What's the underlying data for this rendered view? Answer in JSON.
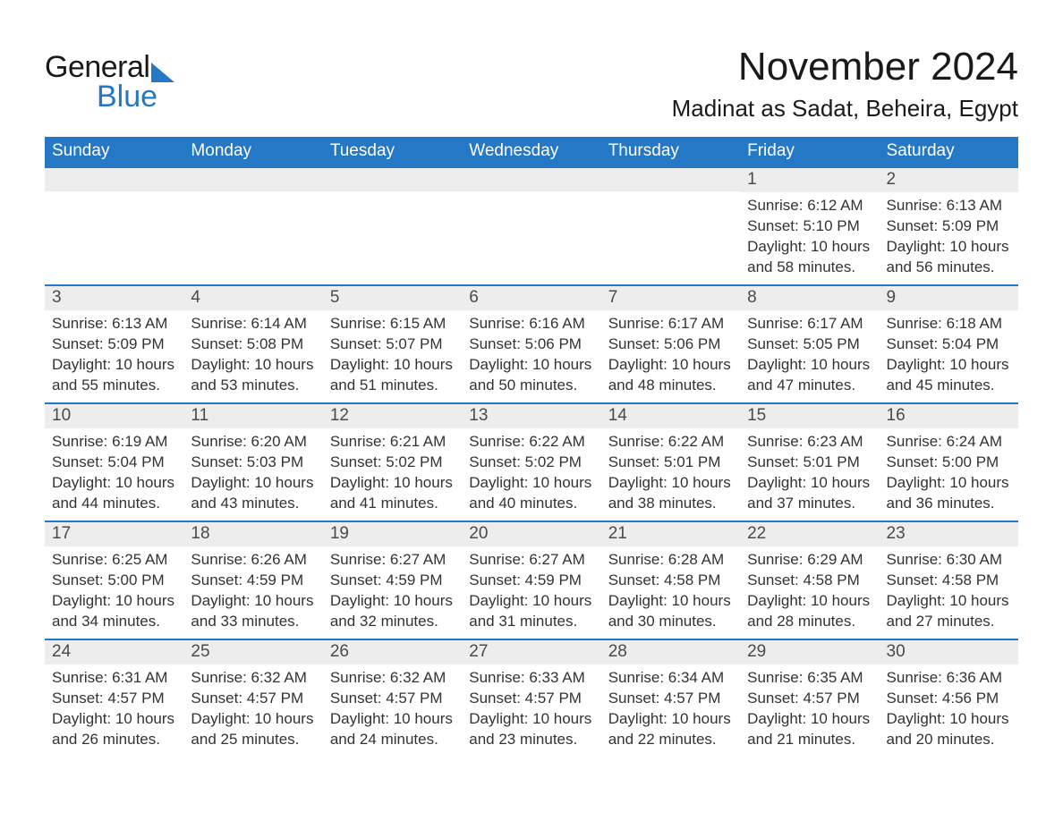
{
  "brand": {
    "name1": "General",
    "name2": "Blue",
    "accent_color": "#2478c6"
  },
  "title": "November 2024",
  "location": "Madinat as Sadat, Beheira, Egypt",
  "colors": {
    "header_bg": "#2478c6",
    "header_text": "#ffffff",
    "daynum_bg": "#ededed",
    "border_top": "#2478c6",
    "body_text": "#333333",
    "page_bg": "#ffffff"
  },
  "weekdays": [
    "Sunday",
    "Monday",
    "Tuesday",
    "Wednesday",
    "Thursday",
    "Friday",
    "Saturday"
  ],
  "weeks": [
    [
      null,
      null,
      null,
      null,
      null,
      {
        "n": "1",
        "sunrise": "Sunrise: 6:12 AM",
        "sunset": "Sunset: 5:10 PM",
        "day1": "Daylight: 10 hours",
        "day2": "and 58 minutes."
      },
      {
        "n": "2",
        "sunrise": "Sunrise: 6:13 AM",
        "sunset": "Sunset: 5:09 PM",
        "day1": "Daylight: 10 hours",
        "day2": "and 56 minutes."
      }
    ],
    [
      {
        "n": "3",
        "sunrise": "Sunrise: 6:13 AM",
        "sunset": "Sunset: 5:09 PM",
        "day1": "Daylight: 10 hours",
        "day2": "and 55 minutes."
      },
      {
        "n": "4",
        "sunrise": "Sunrise: 6:14 AM",
        "sunset": "Sunset: 5:08 PM",
        "day1": "Daylight: 10 hours",
        "day2": "and 53 minutes."
      },
      {
        "n": "5",
        "sunrise": "Sunrise: 6:15 AM",
        "sunset": "Sunset: 5:07 PM",
        "day1": "Daylight: 10 hours",
        "day2": "and 51 minutes."
      },
      {
        "n": "6",
        "sunrise": "Sunrise: 6:16 AM",
        "sunset": "Sunset: 5:06 PM",
        "day1": "Daylight: 10 hours",
        "day2": "and 50 minutes."
      },
      {
        "n": "7",
        "sunrise": "Sunrise: 6:17 AM",
        "sunset": "Sunset: 5:06 PM",
        "day1": "Daylight: 10 hours",
        "day2": "and 48 minutes."
      },
      {
        "n": "8",
        "sunrise": "Sunrise: 6:17 AM",
        "sunset": "Sunset: 5:05 PM",
        "day1": "Daylight: 10 hours",
        "day2": "and 47 minutes."
      },
      {
        "n": "9",
        "sunrise": "Sunrise: 6:18 AM",
        "sunset": "Sunset: 5:04 PM",
        "day1": "Daylight: 10 hours",
        "day2": "and 45 minutes."
      }
    ],
    [
      {
        "n": "10",
        "sunrise": "Sunrise: 6:19 AM",
        "sunset": "Sunset: 5:04 PM",
        "day1": "Daylight: 10 hours",
        "day2": "and 44 minutes."
      },
      {
        "n": "11",
        "sunrise": "Sunrise: 6:20 AM",
        "sunset": "Sunset: 5:03 PM",
        "day1": "Daylight: 10 hours",
        "day2": "and 43 minutes."
      },
      {
        "n": "12",
        "sunrise": "Sunrise: 6:21 AM",
        "sunset": "Sunset: 5:02 PM",
        "day1": "Daylight: 10 hours",
        "day2": "and 41 minutes."
      },
      {
        "n": "13",
        "sunrise": "Sunrise: 6:22 AM",
        "sunset": "Sunset: 5:02 PM",
        "day1": "Daylight: 10 hours",
        "day2": "and 40 minutes."
      },
      {
        "n": "14",
        "sunrise": "Sunrise: 6:22 AM",
        "sunset": "Sunset: 5:01 PM",
        "day1": "Daylight: 10 hours",
        "day2": "and 38 minutes."
      },
      {
        "n": "15",
        "sunrise": "Sunrise: 6:23 AM",
        "sunset": "Sunset: 5:01 PM",
        "day1": "Daylight: 10 hours",
        "day2": "and 37 minutes."
      },
      {
        "n": "16",
        "sunrise": "Sunrise: 6:24 AM",
        "sunset": "Sunset: 5:00 PM",
        "day1": "Daylight: 10 hours",
        "day2": "and 36 minutes."
      }
    ],
    [
      {
        "n": "17",
        "sunrise": "Sunrise: 6:25 AM",
        "sunset": "Sunset: 5:00 PM",
        "day1": "Daylight: 10 hours",
        "day2": "and 34 minutes."
      },
      {
        "n": "18",
        "sunrise": "Sunrise: 6:26 AM",
        "sunset": "Sunset: 4:59 PM",
        "day1": "Daylight: 10 hours",
        "day2": "and 33 minutes."
      },
      {
        "n": "19",
        "sunrise": "Sunrise: 6:27 AM",
        "sunset": "Sunset: 4:59 PM",
        "day1": "Daylight: 10 hours",
        "day2": "and 32 minutes."
      },
      {
        "n": "20",
        "sunrise": "Sunrise: 6:27 AM",
        "sunset": "Sunset: 4:59 PM",
        "day1": "Daylight: 10 hours",
        "day2": "and 31 minutes."
      },
      {
        "n": "21",
        "sunrise": "Sunrise: 6:28 AM",
        "sunset": "Sunset: 4:58 PM",
        "day1": "Daylight: 10 hours",
        "day2": "and 30 minutes."
      },
      {
        "n": "22",
        "sunrise": "Sunrise: 6:29 AM",
        "sunset": "Sunset: 4:58 PM",
        "day1": "Daylight: 10 hours",
        "day2": "and 28 minutes."
      },
      {
        "n": "23",
        "sunrise": "Sunrise: 6:30 AM",
        "sunset": "Sunset: 4:58 PM",
        "day1": "Daylight: 10 hours",
        "day2": "and 27 minutes."
      }
    ],
    [
      {
        "n": "24",
        "sunrise": "Sunrise: 6:31 AM",
        "sunset": "Sunset: 4:57 PM",
        "day1": "Daylight: 10 hours",
        "day2": "and 26 minutes."
      },
      {
        "n": "25",
        "sunrise": "Sunrise: 6:32 AM",
        "sunset": "Sunset: 4:57 PM",
        "day1": "Daylight: 10 hours",
        "day2": "and 25 minutes."
      },
      {
        "n": "26",
        "sunrise": "Sunrise: 6:32 AM",
        "sunset": "Sunset: 4:57 PM",
        "day1": "Daylight: 10 hours",
        "day2": "and 24 minutes."
      },
      {
        "n": "27",
        "sunrise": "Sunrise: 6:33 AM",
        "sunset": "Sunset: 4:57 PM",
        "day1": "Daylight: 10 hours",
        "day2": "and 23 minutes."
      },
      {
        "n": "28",
        "sunrise": "Sunrise: 6:34 AM",
        "sunset": "Sunset: 4:57 PM",
        "day1": "Daylight: 10 hours",
        "day2": "and 22 minutes."
      },
      {
        "n": "29",
        "sunrise": "Sunrise: 6:35 AM",
        "sunset": "Sunset: 4:57 PM",
        "day1": "Daylight: 10 hours",
        "day2": "and 21 minutes."
      },
      {
        "n": "30",
        "sunrise": "Sunrise: 6:36 AM",
        "sunset": "Sunset: 4:56 PM",
        "day1": "Daylight: 10 hours",
        "day2": "and 20 minutes."
      }
    ]
  ]
}
